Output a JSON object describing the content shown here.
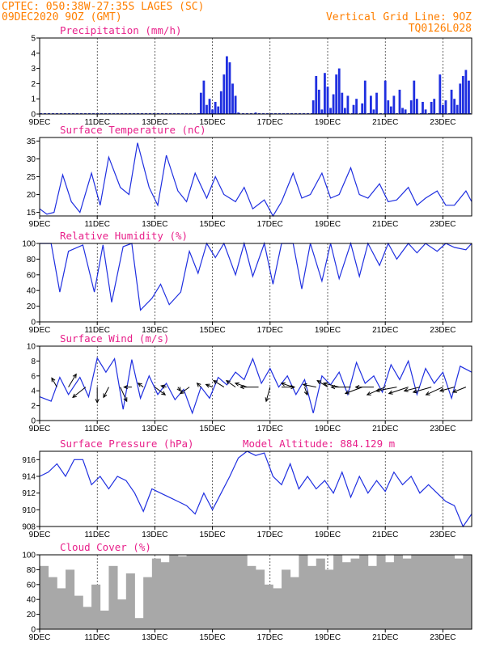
{
  "header": {
    "line1": "CPTEC:   050:38W-27:35S  LAGES (SC)",
    "line2": "09DEC2020 9OZ (GMT)",
    "grid_note": "Vertical Grid Line: 9OZ",
    "code": "TQ0126L028"
  },
  "extra_title": "Model Altitude: 884.129 m",
  "colors": {
    "header": "#ff7f00",
    "title": "#e8208a",
    "series": "#1f2fe0",
    "cloud": "#a8a8a8",
    "arrow": "#000000"
  },
  "chart_data": [
    {
      "type": "bar",
      "title": "Precipitation (mm/h)",
      "x_tick_labels": [
        "9DEC",
        "11DEC",
        "13DEC",
        "15DEC",
        "17DEC",
        "19DEC",
        "21DEC",
        "23DEC"
      ],
      "ylim": [
        0,
        5
      ],
      "y_ticks": [
        0,
        1,
        2,
        3,
        4,
        5
      ],
      "x_range_days": [
        0,
        15
      ],
      "days": [
        5.6,
        5.7,
        5.8,
        5.9,
        6.0,
        6.1,
        6.2,
        6.3,
        6.4,
        6.5,
        6.6,
        6.7,
        6.8,
        6.9,
        7.5,
        9.5,
        9.6,
        9.7,
        9.8,
        9.9,
        10.0,
        10.1,
        10.2,
        10.3,
        10.4,
        10.5,
        10.6,
        10.7,
        10.9,
        11.0,
        11.2,
        11.3,
        11.5,
        11.6,
        11.7,
        12.0,
        12.1,
        12.2,
        12.3,
        12.5,
        12.6,
        12.7,
        12.9,
        13.0,
        13.1,
        13.3,
        13.4,
        13.6,
        13.7,
        13.9,
        14.0,
        14.1,
        14.3,
        14.4,
        14.5,
        14.6,
        14.7,
        14.8,
        14.9
      ],
      "values": [
        1.4,
        2.2,
        0.6,
        1.0,
        0.3,
        0.8,
        0.5,
        1.5,
        2.6,
        3.8,
        3.4,
        2.0,
        1.2,
        0.1,
        0.1,
        0.9,
        2.5,
        1.6,
        0.3,
        2.7,
        1.8,
        0.4,
        1.3,
        2.6,
        3.0,
        1.4,
        0.4,
        1.2,
        0.6,
        1.0,
        0.7,
        2.2,
        1.2,
        0.3,
        1.4,
        2.2,
        0.9,
        0.5,
        1.2,
        1.6,
        0.4,
        0.3,
        0.9,
        2.2,
        1.0,
        0.8,
        0.3,
        0.8,
        1.0,
        2.6,
        0.6,
        0.9,
        1.6,
        1.0,
        0.6,
        2.0,
        2.5,
        2.9,
        2.2
      ]
    },
    {
      "type": "line",
      "title": "Surface Temperature (nC)",
      "x_tick_labels": [
        "9DEC",
        "11DEC",
        "13DEC",
        "15DEC",
        "17DEC",
        "19DEC",
        "21DEC",
        "23DEC"
      ],
      "ylim": [
        14,
        36
      ],
      "y_ticks": [
        15,
        20,
        25,
        30,
        35
      ],
      "x": [
        0,
        0.25,
        0.5,
        0.8,
        1.1,
        1.4,
        1.8,
        2.1,
        2.4,
        2.8,
        3.1,
        3.4,
        3.8,
        4.1,
        4.4,
        4.8,
        5.1,
        5.4,
        5.8,
        6.1,
        6.4,
        6.8,
        7.1,
        7.4,
        7.8,
        8.1,
        8.4,
        8.8,
        9.1,
        9.4,
        9.8,
        10.1,
        10.4,
        10.8,
        11.1,
        11.4,
        11.8,
        12.1,
        12.4,
        12.8,
        13.1,
        13.4,
        13.8,
        14.1,
        14.4,
        14.8,
        15.0
      ],
      "y": [
        16,
        14.5,
        15,
        25.5,
        18,
        15,
        26,
        17,
        30.5,
        22,
        20,
        34.5,
        22,
        17,
        31,
        21,
        18,
        26,
        19,
        25,
        20,
        18,
        22,
        16,
        18.5,
        14,
        18,
        26,
        19,
        20,
        26,
        19,
        20,
        27.5,
        20,
        19,
        23,
        18,
        18.5,
        22,
        17,
        19,
        21,
        17,
        17,
        21,
        18
      ]
    },
    {
      "type": "line",
      "title": "Relative Humidity (%)",
      "x_tick_labels": [
        "9DEC",
        "11DEC",
        "13DEC",
        "15DEC",
        "17DEC",
        "19DEC",
        "21DEC",
        "23DEC"
      ],
      "ylim": [
        0,
        100
      ],
      "y_ticks": [
        0,
        20,
        40,
        60,
        80,
        100
      ],
      "x": [
        0,
        0.4,
        0.7,
        1.0,
        1.5,
        1.9,
        2.2,
        2.5,
        2.9,
        3.2,
        3.5,
        3.9,
        4.2,
        4.5,
        4.9,
        5.2,
        5.5,
        5.8,
        6.1,
        6.4,
        6.8,
        7.1,
        7.4,
        7.8,
        8.1,
        8.4,
        8.8,
        9.1,
        9.4,
        9.8,
        10.1,
        10.4,
        10.8,
        11.1,
        11.4,
        11.8,
        12.1,
        12.4,
        12.8,
        13.1,
        13.4,
        13.8,
        14.1,
        14.4,
        14.8,
        15.0
      ],
      "y": [
        100,
        100,
        38,
        90,
        98,
        38,
        98,
        25,
        96,
        100,
        15,
        30,
        48,
        22,
        38,
        90,
        62,
        100,
        82,
        100,
        60,
        100,
        58,
        100,
        48,
        100,
        100,
        42,
        100,
        52,
        100,
        55,
        100,
        58,
        100,
        72,
        100,
        80,
        100,
        88,
        100,
        90,
        100,
        95,
        92,
        100
      ]
    },
    {
      "type": "line",
      "title": "Surface Wind (m/s)",
      "x_tick_labels": [
        "9DEC",
        "11DEC",
        "13DEC",
        "15DEC",
        "17DEC",
        "19DEC",
        "21DEC",
        "23DEC"
      ],
      "ylim": [
        0,
        10
      ],
      "y_ticks": [
        0,
        2,
        4,
        6,
        8,
        10
      ],
      "x": [
        0,
        0.4,
        0.7,
        1.0,
        1.4,
        1.7,
        2.0,
        2.3,
        2.6,
        2.9,
        3.2,
        3.5,
        3.8,
        4.1,
        4.4,
        4.7,
        5.0,
        5.3,
        5.6,
        5.9,
        6.2,
        6.5,
        6.8,
        7.1,
        7.4,
        7.7,
        8.0,
        8.3,
        8.6,
        8.9,
        9.2,
        9.5,
        9.8,
        10.1,
        10.4,
        10.7,
        11.0,
        11.3,
        11.6,
        11.9,
        12.2,
        12.5,
        12.8,
        13.1,
        13.4,
        13.7,
        14.0,
        14.3,
        14.6,
        15.0
      ],
      "y": [
        3.2,
        2.6,
        5.8,
        3.5,
        5.8,
        3.2,
        8.4,
        6.5,
        8.3,
        1.5,
        8.2,
        3.0,
        6.0,
        3.5,
        5.0,
        2.8,
        4.2,
        1.0,
        4.5,
        3.0,
        5.8,
        4.8,
        6.5,
        5.5,
        8.3,
        5.0,
        7.0,
        4.5,
        6.0,
        3.5,
        5.5,
        1.0,
        6.0,
        4.8,
        6.5,
        3.5,
        7.8,
        5.0,
        6.0,
        3.8,
        7.5,
        5.5,
        8.0,
        3.5,
        7.0,
        5.0,
        6.5,
        3.0,
        7.3,
        6.5
      ],
      "wind_vectors": {
        "x": [
          0.6,
          1.0,
          1.6,
          2.0,
          2.4,
          2.8,
          3.2,
          3.6,
          4.0,
          4.4,
          4.8,
          5.2,
          5.6,
          6.0,
          6.4,
          6.8,
          7.2,
          7.6,
          8.0,
          8.4,
          8.8,
          9.2,
          9.6,
          10.0,
          10.4,
          10.8,
          11.2,
          11.6,
          12.0,
          12.4,
          12.8,
          13.2,
          13.6,
          14.0,
          14.4,
          14.8
        ],
        "u": [
          -0.4,
          0.6,
          -1.0,
          0.0,
          -0.4,
          0.5,
          -0.6,
          -0.4,
          0.8,
          -0.4,
          0.2,
          -0.7,
          -0.3,
          -0.5,
          -0.8,
          -0.7,
          -0.9,
          -1.4,
          -0.3,
          1.0,
          -0.9,
          0.2,
          -1.0,
          -0.8,
          -1.2,
          -1.5,
          -1.3,
          -1.4,
          -1.4,
          -1.6,
          -1.5,
          -1.2,
          -1.4,
          -1.3,
          -1.1,
          -1.0
        ],
        "v": [
          0.7,
          1.0,
          -0.8,
          -1.2,
          -0.8,
          -1.1,
          0.0,
          0.3,
          -0.6,
          0.1,
          -0.3,
          -0.5,
          0.3,
          0.2,
          0.5,
          0.5,
          0.3,
          0.0,
          -1.1,
          0.0,
          0.3,
          -0.6,
          0.2,
          0.5,
          0.3,
          0.0,
          -0.5,
          0.0,
          -0.6,
          -0.3,
          -0.5,
          -0.3,
          -0.4,
          -0.6,
          -0.3,
          -0.4
        ]
      }
    },
    {
      "type": "line",
      "title": "Surface Pressure (hPa)",
      "x_tick_labels": [
        "9DEC",
        "11DEC",
        "13DEC",
        "15DEC",
        "17DEC",
        "19DEC",
        "21DEC",
        "23DEC"
      ],
      "ylim": [
        908,
        917
      ],
      "y_ticks": [
        908,
        910,
        912,
        914,
        916
      ],
      "x": [
        0,
        0.3,
        0.6,
        0.9,
        1.2,
        1.5,
        1.8,
        2.1,
        2.4,
        2.7,
        3.0,
        3.3,
        3.6,
        3.9,
        4.2,
        4.5,
        4.8,
        5.1,
        5.4,
        5.7,
        6.0,
        6.3,
        6.6,
        6.9,
        7.2,
        7.5,
        7.8,
        8.1,
        8.4,
        8.7,
        9.0,
        9.3,
        9.6,
        9.9,
        10.2,
        10.5,
        10.8,
        11.1,
        11.4,
        11.7,
        12.0,
        12.3,
        12.6,
        12.9,
        13.2,
        13.5,
        13.8,
        14.1,
        14.4,
        14.7,
        15.0
      ],
      "y": [
        914,
        914.5,
        915.5,
        914,
        916,
        916,
        913,
        914,
        912.5,
        914,
        913.5,
        912,
        909.8,
        912.5,
        912,
        911.5,
        911,
        910.5,
        909.5,
        912,
        910,
        912,
        914,
        916.2,
        917,
        916.5,
        916.8,
        914,
        913,
        915.5,
        912.5,
        914,
        912.5,
        913.5,
        912,
        914.5,
        911.5,
        914,
        912,
        913.5,
        912.2,
        914.5,
        913,
        914,
        912,
        913,
        912,
        911,
        910.5,
        908,
        909.5
      ]
    },
    {
      "type": "bar",
      "title": "Cloud Cover (%)",
      "x_tick_labels": [
        "9DEC",
        "11DEC",
        "13DEC",
        "15DEC",
        "17DEC",
        "19DEC",
        "21DEC",
        "23DEC"
      ],
      "ylim": [
        0,
        100
      ],
      "y_ticks": [
        0,
        20,
        40,
        60,
        80,
        100
      ],
      "x": [
        0.0,
        0.3,
        0.6,
        0.9,
        1.2,
        1.5,
        1.8,
        2.1,
        2.4,
        2.7,
        3.0,
        3.3,
        3.6,
        3.9,
        4.2,
        4.5,
        4.8,
        5.1,
        5.4,
        5.7,
        6.0,
        6.3,
        6.6,
        6.9,
        7.2,
        7.5,
        7.8,
        8.1,
        8.4,
        8.7,
        9.0,
        9.3,
        9.6,
        9.9,
        10.2,
        10.5,
        10.8,
        11.1,
        11.4,
        11.7,
        12.0,
        12.3,
        12.6,
        12.9,
        13.2,
        13.5,
        13.8,
        14.1,
        14.4,
        14.7
      ],
      "values": [
        85,
        70,
        55,
        80,
        45,
        30,
        60,
        25,
        85,
        40,
        75,
        15,
        70,
        95,
        90,
        100,
        98,
        100,
        100,
        100,
        100,
        100,
        100,
        100,
        85,
        80,
        60,
        55,
        80,
        70,
        100,
        85,
        95,
        80,
        100,
        90,
        95,
        100,
        85,
        100,
        90,
        100,
        95,
        100,
        100,
        100,
        100,
        100,
        95,
        100
      ]
    }
  ]
}
